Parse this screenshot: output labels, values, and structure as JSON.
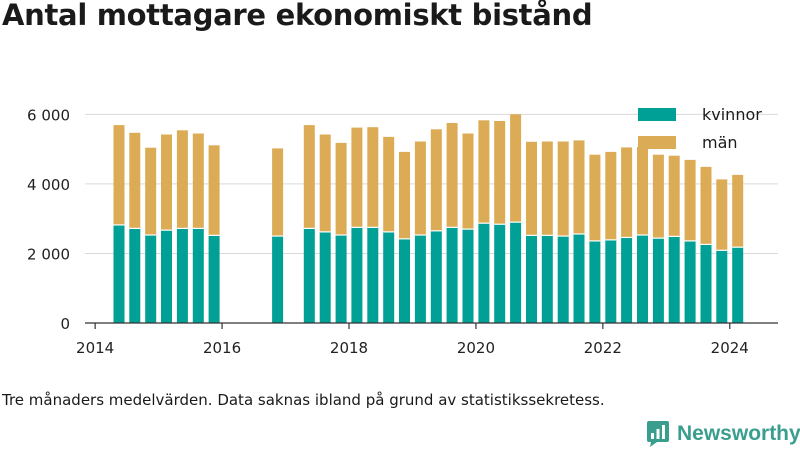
{
  "title": "Antal mottagare ekonomiskt bistånd",
  "caption": "Tre månaders medelvärden. Data saknas ibland på grund av statistikssekretess.",
  "brand": {
    "name": "Newsworthy",
    "icon": "newsworthy-logo-icon",
    "color": "#3a9e8f"
  },
  "chart_data": {
    "type": "bar",
    "stacked": true,
    "x_is_date_axis": true,
    "x_ticks": [
      "2014",
      "2016",
      "2018",
      "2020",
      "2022",
      "2024"
    ],
    "y_ticks": [
      "0",
      "2 000",
      "4 000",
      "6 000"
    ],
    "ylim": [
      0,
      6700
    ],
    "grid": true,
    "legend_position": "top-right",
    "x": [
      "2014-05",
      "2014-08",
      "2014-11",
      "2015-02",
      "2015-05",
      "2015-08",
      "2015-11",
      "2016-11",
      "2017-05",
      "2017-08",
      "2017-11",
      "2018-02",
      "2018-05",
      "2018-08",
      "2018-11",
      "2019-02",
      "2019-05",
      "2019-08",
      "2019-11",
      "2020-02",
      "2020-05",
      "2020-08",
      "2020-11",
      "2021-02",
      "2021-05",
      "2021-08",
      "2021-11",
      "2022-02",
      "2022-05",
      "2022-08",
      "2022-11",
      "2023-02",
      "2023-05",
      "2023-08",
      "2023-11",
      "2024-02"
    ],
    "series": [
      {
        "name": "kvinnor",
        "color": "#00a096",
        "values": [
          2820,
          2720,
          2530,
          2670,
          2720,
          2720,
          2520,
          2500,
          2720,
          2620,
          2530,
          2750,
          2750,
          2620,
          2420,
          2530,
          2650,
          2750,
          2700,
          2870,
          2840,
          2900,
          2520,
          2520,
          2500,
          2560,
          2360,
          2390,
          2460,
          2530,
          2440,
          2490,
          2360,
          2260,
          2090,
          2180
        ]
      },
      {
        "name": "män",
        "color": "#dbac55",
        "values": [
          2870,
          2750,
          2510,
          2750,
          2820,
          2730,
          2590,
          2520,
          2970,
          2800,
          2650,
          2870,
          2880,
          2730,
          2500,
          2690,
          2920,
          3000,
          2750,
          2960,
          2970,
          3100,
          2690,
          2700,
          2720,
          2690,
          2480,
          2530,
          2590,
          2530,
          2400,
          2320,
          2330,
          2230,
          2040,
          2080
        ]
      }
    ]
  }
}
